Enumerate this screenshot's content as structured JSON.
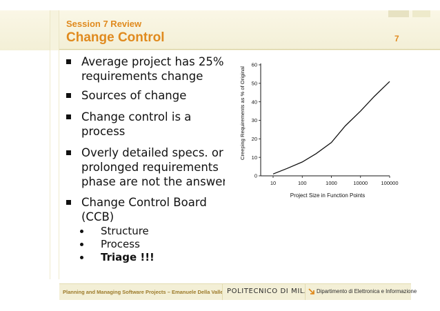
{
  "header": {
    "session": "Session 7 Review",
    "title": "Change Control",
    "page_number": "7"
  },
  "bullets": {
    "b1_l1": "Average project has 25%",
    "b1_l2": "requirements change",
    "b2_l1": "Sources of change",
    "b3_l1": "Change control is a",
    "b3_l2": "process",
    "b4_l1": "Overly detailed specs. or",
    "b4_l2": "prolonged requirements",
    "b4_l3": "phase are not the answer",
    "b5_l1": "Change Control Board",
    "b5_l2": "(CCB)",
    "sub": [
      "Structure",
      "Process",
      "Triage !!!"
    ]
  },
  "chart_data": {
    "type": "line",
    "xlabel": "Project Size in Function Points",
    "ylabel": "Creeping Requirements as % of Original",
    "x_ticks": [
      "10",
      "100",
      "1000",
      "10000",
      "100000"
    ],
    "y_ticks": [
      "0",
      "10",
      "20",
      "30",
      "40",
      "50",
      "60"
    ],
    "xscale": "log",
    "ylim": [
      0,
      60
    ],
    "xlim": [
      10,
      100000
    ],
    "grid": false,
    "series": [
      {
        "x": [
          10,
          30,
          100,
          300,
          1000,
          3000,
          10000,
          30000,
          100000
        ],
        "y": [
          1,
          4,
          7.5,
          12,
          18,
          27,
          35,
          43,
          51
        ]
      }
    ]
  },
  "footer": {
    "course": "Planning and Managing Software Projects – Emanuele Della Valle",
    "university": "POLITECNICO DI MILANO",
    "department": "Dipartimento di Elettronica e Informazione"
  },
  "colors": {
    "accent": "#e08a1e",
    "header_bg": "#f3efd6"
  }
}
